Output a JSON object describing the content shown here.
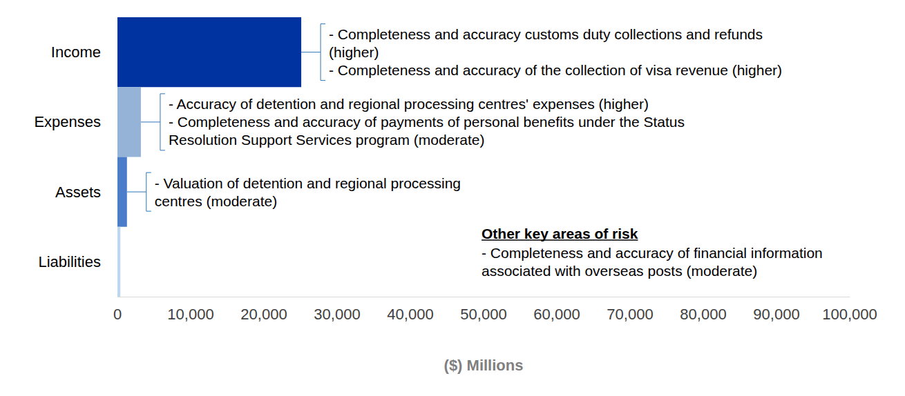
{
  "chart_data": {
    "type": "bar",
    "orientation": "horizontal",
    "categories": [
      "Income",
      "Expenses",
      "Assets",
      "Liabilities"
    ],
    "values": [
      25100,
      3200,
      1300,
      400
    ],
    "colors": [
      "#0033a0",
      "#95b3d7",
      "#4a7cc9",
      "#bdd7ee"
    ],
    "xlim": [
      0,
      100000
    ],
    "xticks": [
      0,
      {
        "value": 10000,
        "label": "10,000"
      },
      {
        "value": 20000,
        "label": "20,000"
      },
      {
        "value": 30000,
        "label": "30,000"
      },
      {
        "value": 40000,
        "label": "40,000"
      },
      {
        "value": 50000,
        "label": "50,000"
      },
      {
        "value": 60000,
        "label": "60,000"
      },
      {
        "value": 70000,
        "label": "70,000"
      },
      {
        "value": 80000,
        "label": "80,000"
      },
      {
        "value": 90000,
        "label": "90,000"
      },
      {
        "value": 100000,
        "label": "100,000"
      }
    ],
    "x_label": "($) Millions",
    "grid": false,
    "annotations": [
      {
        "category": "Income",
        "lines": [
          "- Completeness and accuracy customs duty collections and refunds",
          "(higher)",
          "- Completeness and accuracy of the collection of visa revenue (higher)"
        ]
      },
      {
        "category": "Expenses",
        "lines": [
          "- Accuracy of detention and regional processing centres' expenses (higher)",
          "- Completeness and accuracy of payments of personal benefits under the Status",
          "Resolution Support Services program (moderate)"
        ]
      },
      {
        "category": "Assets",
        "lines": [
          "- Valuation of detention and regional processing",
          "centres (moderate)"
        ]
      },
      {
        "title": "Other key areas of risk",
        "lines": [
          "- Completeness and accuracy of financial information",
          "associated with overseas posts (moderate)"
        ]
      }
    ]
  }
}
